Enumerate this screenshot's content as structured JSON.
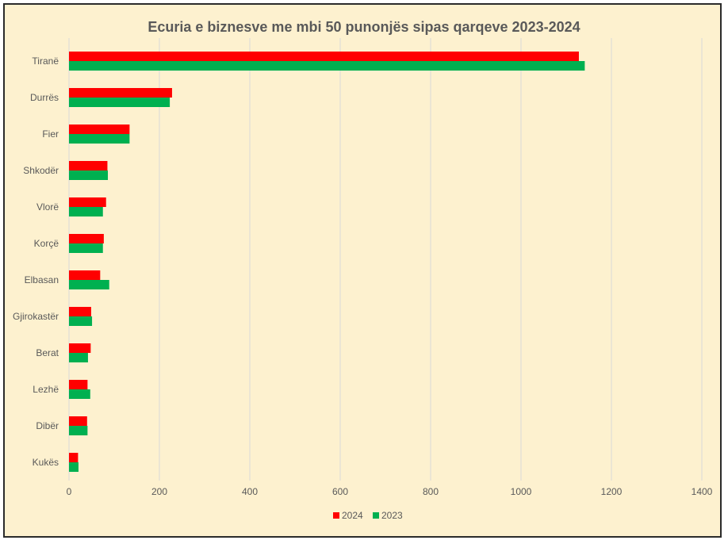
{
  "chart_data": {
    "type": "bar",
    "orientation": "horizontal",
    "title": "Ecuria e biznesve me mbi 50 punonjës sipas qarqeve 2023-2024",
    "categories": [
      "Tiranë",
      "Durrës",
      "Fier",
      "Shkodër",
      "Vlorë",
      "Korçë",
      "Elbasan",
      "Gjirokastër",
      "Berat",
      "Lezhë",
      "Dibër",
      "Kukës"
    ],
    "series": [
      {
        "name": "2024",
        "color": "#ff0000",
        "values": [
          1128,
          228,
          134,
          85,
          82,
          77,
          69,
          49,
          48,
          41,
          40,
          20
        ]
      },
      {
        "name": "2023",
        "color": "#00b050",
        "values": [
          1141,
          223,
          134,
          86,
          75,
          75,
          89,
          51,
          42,
          47,
          41,
          21
        ]
      }
    ],
    "xlim": [
      0,
      1400
    ],
    "xticks": [
      0,
      200,
      400,
      600,
      800,
      1000,
      1200,
      1400
    ],
    "grid": "vertical",
    "legend": "bottom"
  }
}
